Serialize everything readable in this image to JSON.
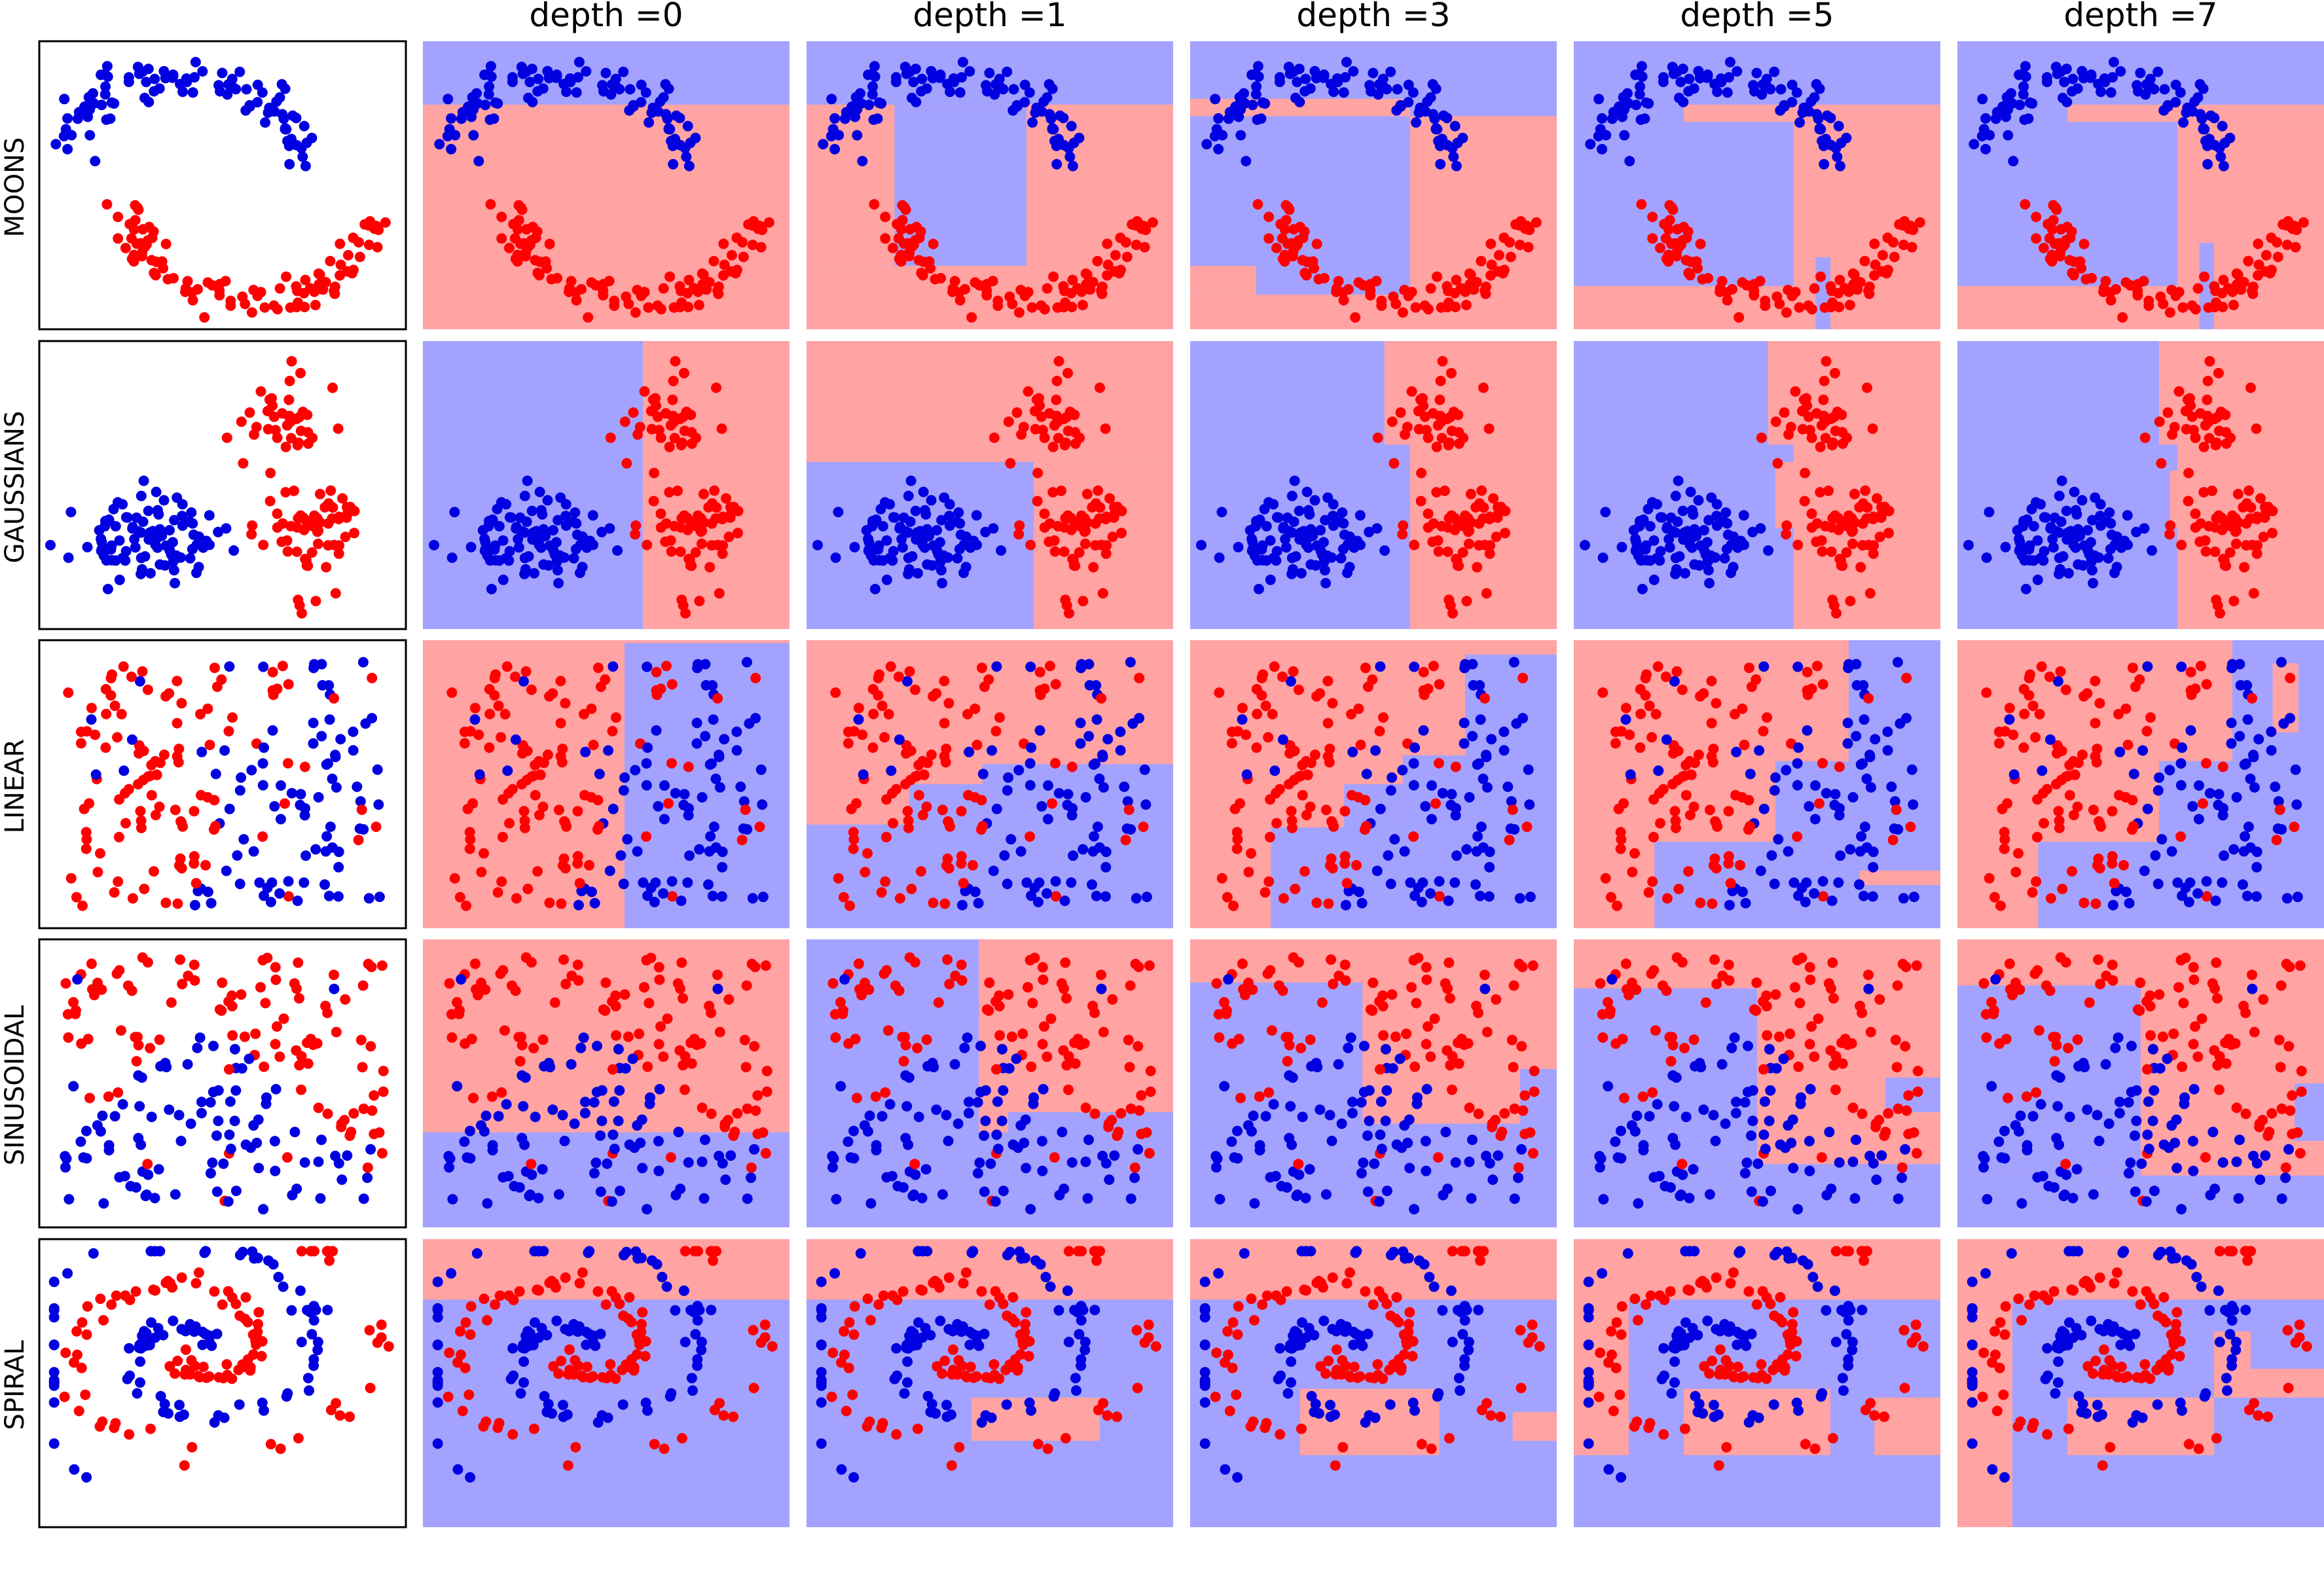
{
  "figure": {
    "colors": {
      "class_red": "#ff0000",
      "class_blue": "#0000e0",
      "region_red": "#ffa3a3",
      "region_blue": "#a3a3ff",
      "frame": "#000000"
    },
    "column_titles": [
      "depth =0",
      "depth =1",
      "depth =3",
      "depth =5",
      "depth =7"
    ],
    "row_labels": [
      "MOONS",
      "GAUSSIANS",
      "LINEAR",
      "SINUSOIDAL",
      "SPIRAL"
    ],
    "first_column_note": "raw data points only",
    "other_columns_note": "decision regions shaded by predicted class"
  },
  "chart_data": [
    {
      "type": "scatter",
      "dataset": "MOONS",
      "depth": null
    },
    {
      "type": "scatter",
      "dataset": "MOONS",
      "depth": 0
    },
    {
      "type": "scatter",
      "dataset": "MOONS",
      "depth": 1
    },
    {
      "type": "scatter",
      "dataset": "MOONS",
      "depth": 3
    },
    {
      "type": "scatter",
      "dataset": "MOONS",
      "depth": 5
    },
    {
      "type": "scatter",
      "dataset": "MOONS",
      "depth": 7
    },
    {
      "type": "scatter",
      "dataset": "GAUSSIANS",
      "depth": null
    },
    {
      "type": "scatter",
      "dataset": "GAUSSIANS",
      "depth": 0
    },
    {
      "type": "scatter",
      "dataset": "GAUSSIANS",
      "depth": 1
    },
    {
      "type": "scatter",
      "dataset": "GAUSSIANS",
      "depth": 3
    },
    {
      "type": "scatter",
      "dataset": "GAUSSIANS",
      "depth": 5
    },
    {
      "type": "scatter",
      "dataset": "GAUSSIANS",
      "depth": 7
    },
    {
      "type": "scatter",
      "dataset": "LINEAR",
      "depth": null
    },
    {
      "type": "scatter",
      "dataset": "LINEAR",
      "depth": 0
    },
    {
      "type": "scatter",
      "dataset": "LINEAR",
      "depth": 1
    },
    {
      "type": "scatter",
      "dataset": "LINEAR",
      "depth": 3
    },
    {
      "type": "scatter",
      "dataset": "LINEAR",
      "depth": 5
    },
    {
      "type": "scatter",
      "dataset": "LINEAR",
      "depth": 7
    },
    {
      "type": "scatter",
      "dataset": "SINUSOIDAL",
      "depth": null
    },
    {
      "type": "scatter",
      "dataset": "SINUSOIDAL",
      "depth": 0
    },
    {
      "type": "scatter",
      "dataset": "SINUSOIDAL",
      "depth": 1
    },
    {
      "type": "scatter",
      "dataset": "SINUSOIDAL",
      "depth": 3
    },
    {
      "type": "scatter",
      "dataset": "SINUSOIDAL",
      "depth": 5
    },
    {
      "type": "scatter",
      "dataset": "SINUSOIDAL",
      "depth": 7
    },
    {
      "type": "scatter",
      "dataset": "SPIRAL",
      "depth": null
    },
    {
      "type": "scatter",
      "dataset": "SPIRAL",
      "depth": 0
    },
    {
      "type": "scatter",
      "dataset": "SPIRAL",
      "depth": 1
    },
    {
      "type": "scatter",
      "dataset": "SPIRAL",
      "depth": 3
    },
    {
      "type": "scatter",
      "dataset": "SPIRAL",
      "depth": 5
    },
    {
      "type": "scatter",
      "dataset": "SPIRAL",
      "depth": 7
    }
  ]
}
